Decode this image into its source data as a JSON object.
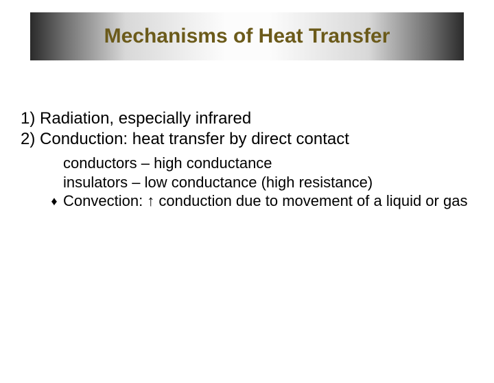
{
  "title": "Mechanisms of Heat Transfer",
  "items": {
    "i1": "1) Radiation, especially infrared",
    "i2": "2) Conduction: heat transfer by direct contact"
  },
  "sub": {
    "s1": "conductors – high conductance",
    "s2": "insulators   – low conductance (high resistance)",
    "s3": "Convection: ↑ conduction due to movement of a liquid or gas"
  },
  "colors": {
    "title_text": "#6b5a1a",
    "body_text": "#000000",
    "background": "#ffffff"
  },
  "fonts": {
    "title_size": 30,
    "body_size": 24,
    "sub_size": 22
  }
}
